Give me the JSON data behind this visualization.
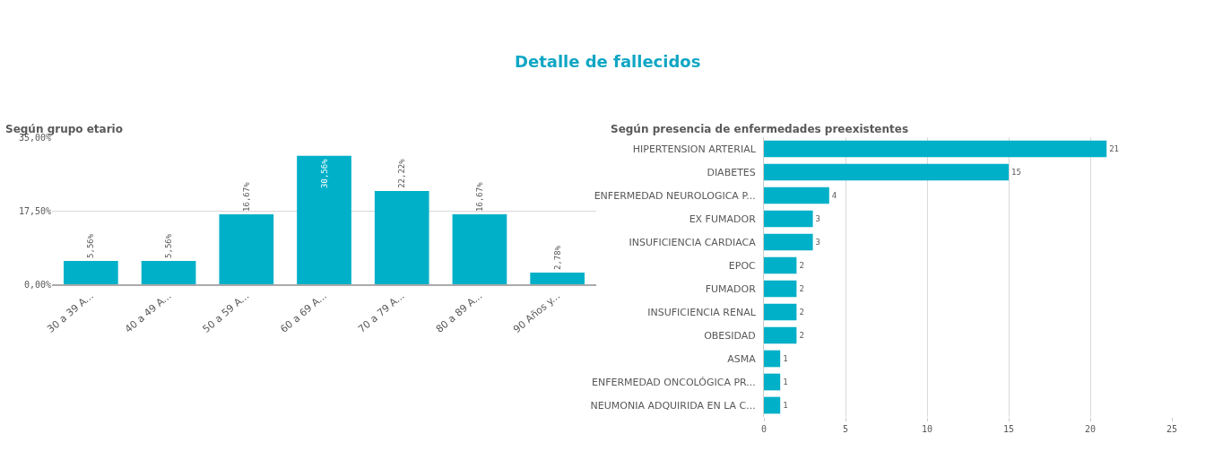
{
  "chart_data": [
    {
      "type": "bar",
      "title": "Detalle de fallecidos",
      "subtitle": "Según grupo etario",
      "categories": [
        "30 a 39 A...",
        "40 a 49 A...",
        "50 a 59 A...",
        "60 a 69 A...",
        "70 a 79 A...",
        "80 a 89 A...",
        "90 Años y..."
      ],
      "values": [
        5.56,
        5.56,
        16.67,
        30.56,
        22.22,
        16.67,
        2.78
      ],
      "value_labels": [
        "5,56%",
        "5,56%",
        "16,67%",
        "30,56%",
        "22,22%",
        "16,67%",
        "2,78%"
      ],
      "color": "#00b0c8",
      "ylim": [
        0,
        35
      ],
      "yticks": [
        {
          "value": 0,
          "label": "0,00%"
        },
        {
          "value": 17.5,
          "label": "17,50%"
        },
        {
          "value": 35,
          "label": "35,00%"
        }
      ],
      "grid": "y",
      "legend": false
    },
    {
      "type": "bar",
      "orientation": "horizontal",
      "subtitle": "Según presencia de enfermedades preexistentes",
      "categories": [
        "HIPERTENSION ARTERIAL",
        "DIABETES",
        "ENFERMEDAD NEUROLOGICA P...",
        "EX FUMADOR",
        "INSUFICIENCIA CARDIACA",
        "EPOC",
        "FUMADOR",
        "INSUFICIENCIA RENAL",
        "OBESIDAD",
        "ASMA",
        "ENFERMEDAD ONCOLÓGICA PR...",
        "NEUMONIA ADQUIRIDA EN LA C..."
      ],
      "values": [
        21,
        15,
        4,
        3,
        3,
        2,
        2,
        2,
        2,
        1,
        1,
        1
      ],
      "color": "#00b0c8",
      "xlim": [
        0,
        25
      ],
      "xticks": [
        0,
        5,
        10,
        15,
        20,
        25
      ],
      "data_labels": true,
      "grid": "x",
      "legend": false
    }
  ]
}
